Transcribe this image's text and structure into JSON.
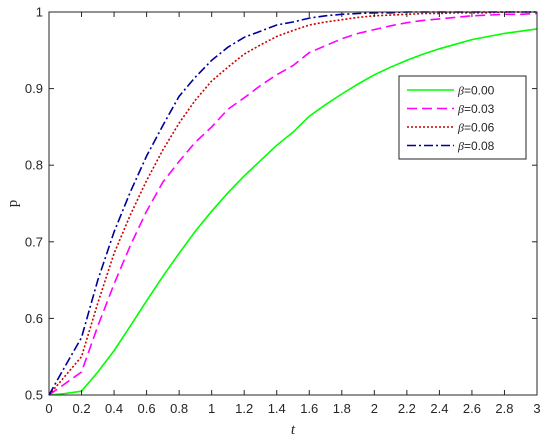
{
  "chart_data": {
    "type": "line",
    "xlabel": "t",
    "ylabel": "p",
    "xlim": [
      0,
      3
    ],
    "ylim": [
      0.5,
      1
    ],
    "x_ticks": [
      0,
      0.2,
      0.4,
      0.6,
      0.8,
      1,
      1.2,
      1.4,
      1.6,
      1.8,
      2,
      2.2,
      2.4,
      2.6,
      2.8,
      3
    ],
    "y_ticks": [
      0.5,
      0.6,
      0.7,
      0.8,
      0.9,
      1
    ],
    "x_tick_labels": [
      "0",
      "0.2",
      "0.4",
      "0.6",
      "0.8",
      "1",
      "1.2",
      "1.4",
      "1.6",
      "1.8",
      "2",
      "2.2",
      "2.4",
      "2.6",
      "2.8",
      "3"
    ],
    "y_tick_labels": [
      "0.5",
      "0.6",
      "0.7",
      "0.8",
      "0.9",
      "1"
    ],
    "grid": false,
    "legend_position": "top-right",
    "x": [
      0,
      0.1,
      0.2,
      0.3,
      0.4,
      0.5,
      0.6,
      0.7,
      0.8,
      0.9,
      1.0,
      1.1,
      1.2,
      1.3,
      1.4,
      1.5,
      1.6,
      1.7,
      1.8,
      1.9,
      2.0,
      2.1,
      2.2,
      2.3,
      2.4,
      2.5,
      2.6,
      2.7,
      2.8,
      2.9,
      3.0
    ],
    "series": [
      {
        "name": "β=0.00",
        "legend_symbol": "β",
        "legend_value": "=0.00",
        "color": "#00ff00",
        "dash": "solid",
        "values": [
          0.5,
          0.502,
          0.505,
          0.53,
          0.558,
          0.59,
          0.623,
          0.655,
          0.685,
          0.714,
          0.74,
          0.764,
          0.786,
          0.806,
          0.826,
          0.843,
          0.864,
          0.879,
          0.893,
          0.906,
          0.918,
          0.928,
          0.937,
          0.945,
          0.952,
          0.958,
          0.964,
          0.968,
          0.972,
          0.975,
          0.978
        ]
      },
      {
        "name": "β=0.03",
        "legend_symbol": "β",
        "legend_value": "=0.03",
        "color": "#ff00ff",
        "dash": "dashed",
        "values": [
          0.5,
          0.515,
          0.53,
          0.59,
          0.645,
          0.695,
          0.74,
          0.778,
          0.805,
          0.83,
          0.85,
          0.873,
          0.888,
          0.904,
          0.918,
          0.93,
          0.947,
          0.956,
          0.965,
          0.972,
          0.977,
          0.982,
          0.986,
          0.989,
          0.991,
          0.993,
          0.995,
          0.996,
          0.997,
          0.997,
          0.998
        ]
      },
      {
        "name": "β=0.06",
        "legend_symbol": "β",
        "legend_value": "=0.06",
        "color": "#cc0000",
        "dash": "dotted",
        "values": [
          0.5,
          0.525,
          0.55,
          0.62,
          0.685,
          0.735,
          0.78,
          0.82,
          0.855,
          0.885,
          0.91,
          0.928,
          0.945,
          0.957,
          0.968,
          0.976,
          0.983,
          0.987,
          0.99,
          0.993,
          0.995,
          0.996,
          0.997,
          0.998,
          0.998,
          0.999,
          0.999,
          0.999,
          1.0,
          1.0,
          1.0
        ]
      },
      {
        "name": "β=0.08",
        "legend_symbol": "β",
        "legend_value": "=0.08",
        "color": "#000099",
        "dash": "dashdot",
        "values": [
          0.5,
          0.538,
          0.575,
          0.65,
          0.713,
          0.765,
          0.812,
          0.852,
          0.89,
          0.915,
          0.937,
          0.954,
          0.967,
          0.975,
          0.983,
          0.987,
          0.992,
          0.995,
          0.997,
          0.998,
          0.999,
          0.999,
          1.0,
          1.0,
          1.0,
          1.0,
          1.0,
          1.0,
          1.0,
          1.0,
          1.0
        ]
      }
    ]
  }
}
